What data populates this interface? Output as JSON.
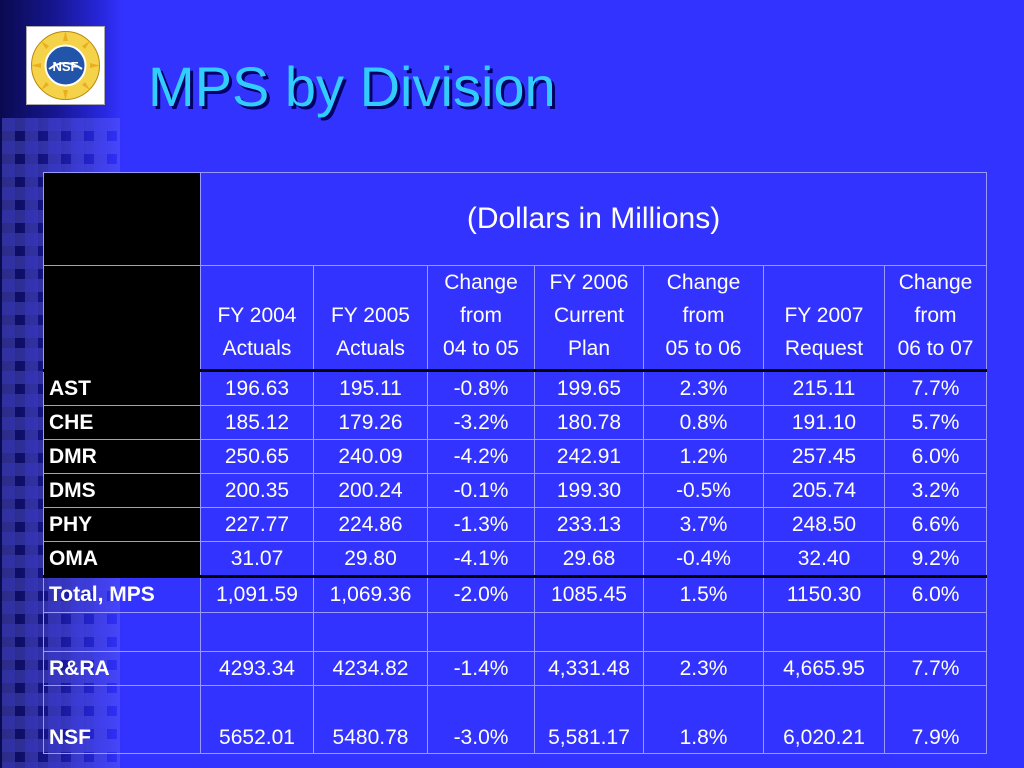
{
  "slide": {
    "title": "MPS by Division",
    "logo_text": "NSF"
  },
  "table": {
    "caption": "(Dollars in Millions)",
    "columns": [
      {
        "lines": [
          "",
          "FY 2004",
          "Actuals"
        ]
      },
      {
        "lines": [
          "",
          "FY 2005",
          "Actuals"
        ]
      },
      {
        "lines": [
          "Change",
          "from",
          "04 to 05"
        ]
      },
      {
        "lines": [
          "FY 2006",
          "Current",
          "Plan"
        ]
      },
      {
        "lines": [
          "Change",
          "from",
          "05 to 06"
        ]
      },
      {
        "lines": [
          "",
          "FY 2007",
          "Request"
        ]
      },
      {
        "lines": [
          "Change",
          "from",
          "06 to 07"
        ]
      }
    ],
    "rows": [
      {
        "label": "AST",
        "values": [
          "196.63",
          "195.11",
          "-0.8%",
          "199.65",
          "2.3%",
          "215.11",
          "7.7%"
        ]
      },
      {
        "label": "CHE",
        "values": [
          "185.12",
          "179.26",
          "-3.2%",
          "180.78",
          "0.8%",
          "191.10",
          "5.7%"
        ]
      },
      {
        "label": "DMR",
        "values": [
          "250.65",
          "240.09",
          "-4.2%",
          "242.91",
          "1.2%",
          "257.45",
          "6.0%"
        ]
      },
      {
        "label": "DMS",
        "values": [
          "200.35",
          "200.24",
          "-0.1%",
          "199.30",
          "-0.5%",
          "205.74",
          "3.2%"
        ]
      },
      {
        "label": "PHY",
        "values": [
          "227.77",
          "224.86",
          "-1.3%",
          "233.13",
          "3.7%",
          "248.50",
          "6.6%"
        ]
      },
      {
        "label": "OMA",
        "values": [
          "31.07",
          "29.80",
          "-4.1%",
          "29.68",
          "-0.4%",
          "32.40",
          "9.2%"
        ]
      }
    ],
    "total": {
      "label": "Total, MPS",
      "values": [
        "1,091.59",
        "1,069.36",
        "-2.0%",
        "1085.45",
        "1.5%",
        "1150.30",
        "6.0%"
      ]
    },
    "rra": {
      "label": "R&RA",
      "values": [
        "4293.34",
        "4234.82",
        "-1.4%",
        "4,331.48",
        "2.3%",
        "4,665.95",
        "7.7%"
      ]
    },
    "nsf": {
      "label": "NSF",
      "values": [
        "5652.01",
        "5480.78",
        "-3.0%",
        "5,581.17",
        "1.8%",
        "6,020.21",
        "7.9%"
      ]
    }
  }
}
